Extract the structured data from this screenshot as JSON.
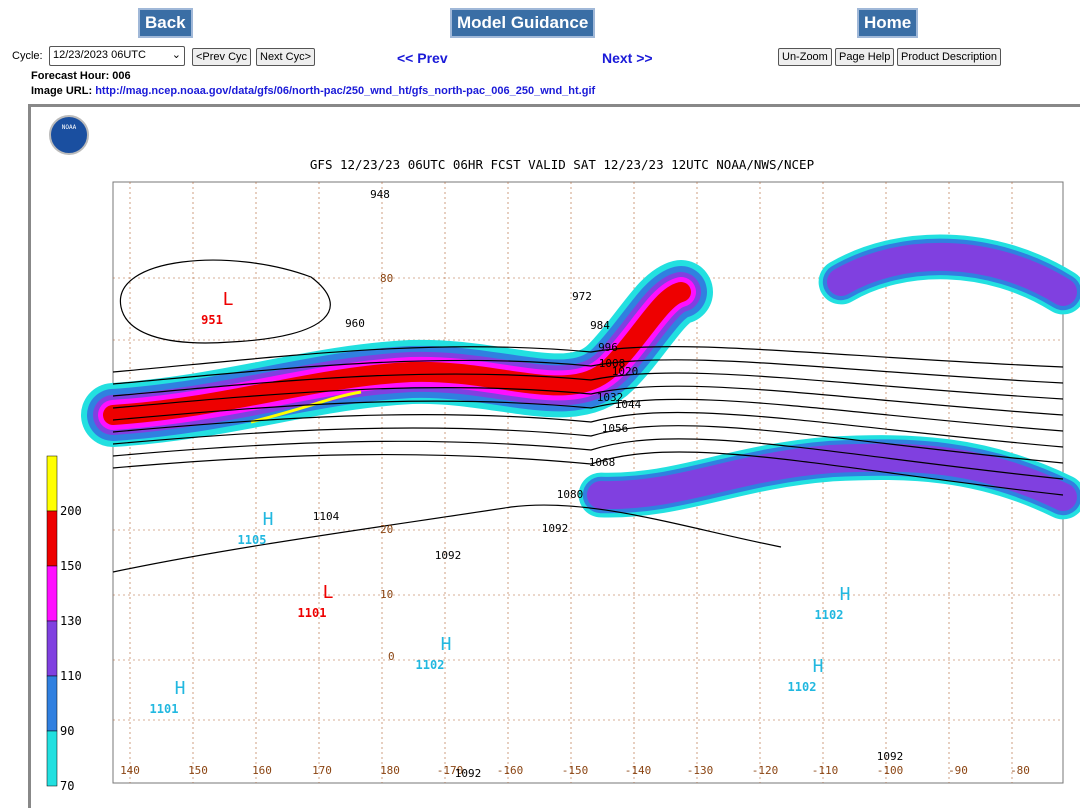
{
  "nav": {
    "back": "Back",
    "guidance": "Model Guidance",
    "home": "Home"
  },
  "controls": {
    "cycle_label": "Cycle:",
    "cycle_value": "12/23/2023 06UTC",
    "prev_cycle": "<Prev Cyc",
    "next_cycle": "Next Cyc>",
    "prev": "<< Prev",
    "next": ">>",
    "next_text": "Next",
    "unzoom": "Un-Zoom",
    "page_help": "Page Help",
    "product_description": "Product Description"
  },
  "info": {
    "forecast_hour": "Forecast Hour: 006",
    "image_url_label": "Image URL:",
    "image_url": "http://mag.ncep.noaa.gov/data/gfs/06/north-pac/250_wnd_ht/gfs_north-pac_006_250_wnd_ht.gif"
  },
  "map": {
    "logo": "NOAA",
    "title": "GFS 12/23/23 06UTC 06HR FCST VALID SAT 12/23/23 12UTC NOAA/NWS/NCEP",
    "colorbar": [
      "200",
      "150",
      "130",
      "110",
      "90",
      "70"
    ],
    "longitudes": [
      "140",
      "150",
      "160",
      "170",
      "180",
      "-170",
      "-160",
      "-150",
      "-140",
      "-130",
      "-120",
      "-110",
      "-100",
      "-90",
      "-80"
    ],
    "latitudes": [
      "80",
      "20",
      "10",
      "0"
    ],
    "contours": [
      "948",
      "960",
      "972",
      "984",
      "996",
      "1008",
      "1020",
      "1032",
      "1044",
      "1056",
      "1068",
      "1080",
      "1092",
      "1092",
      "1104",
      "1092",
      "1092"
    ],
    "centers": [
      {
        "letter": "L",
        "value": "951"
      },
      {
        "letter": "H",
        "value": "1105"
      },
      {
        "letter": "L",
        "value": "1101"
      },
      {
        "letter": "H",
        "value": "1102"
      },
      {
        "letter": "H",
        "value": "1101"
      },
      {
        "letter": "H",
        "value": "1102"
      },
      {
        "letter": "H",
        "value": "1102"
      }
    ]
  }
}
